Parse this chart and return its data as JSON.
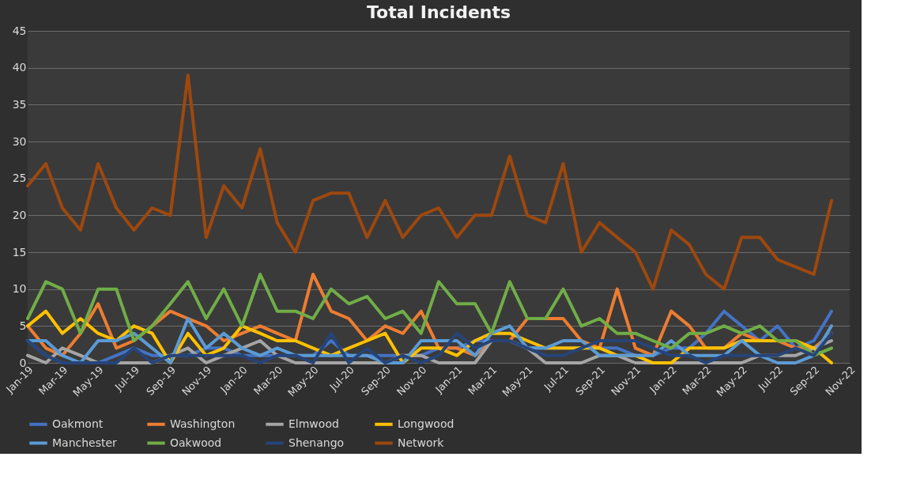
{
  "chart_data": {
    "type": "line",
    "title": "Total Incidents",
    "x": [
      "2019-01",
      "2019-02",
      "2019-03",
      "2019-04",
      "2019-05",
      "2019-06",
      "2019-07",
      "2019-08",
      "2019-09",
      "2019-10",
      "2019-11",
      "2019-12",
      "2020-01",
      "2020-02",
      "2020-03",
      "2020-04",
      "2020-05",
      "2020-06",
      "2020-07",
      "2020-08",
      "2020-09",
      "2020-10",
      "2020-11",
      "2020-12",
      "2021-01",
      "2021-02",
      "2021-03",
      "2021-04",
      "2021-05",
      "2021-06",
      "2021-07",
      "2021-08",
      "2021-09",
      "2021-10",
      "2021-11",
      "2021-12",
      "2022-01",
      "2022-02",
      "2022-03",
      "2022-04",
      "2022-05",
      "2022-06",
      "2022-07",
      "2022-08",
      "2022-09",
      "2022-10"
    ],
    "xlim": [
      "2019-01",
      "2022-11"
    ],
    "xticks": [
      {
        "value": "2019-01",
        "label": "Jan-19"
      },
      {
        "value": "2019-03",
        "label": "Mar-19"
      },
      {
        "value": "2019-05",
        "label": "May-19"
      },
      {
        "value": "2019-07",
        "label": "Jul-19"
      },
      {
        "value": "2019-09",
        "label": "Sep-19"
      },
      {
        "value": "2019-11",
        "label": "Nov-19"
      },
      {
        "value": "2020-01",
        "label": "Jan-20"
      },
      {
        "value": "2020-03",
        "label": "Mar-20"
      },
      {
        "value": "2020-05",
        "label": "May-20"
      },
      {
        "value": "2020-07",
        "label": "Jul-20"
      },
      {
        "value": "2020-09",
        "label": "Sep-20"
      },
      {
        "value": "2020-11",
        "label": "Nov-20"
      },
      {
        "value": "2021-01",
        "label": "Jan-21"
      },
      {
        "value": "2021-03",
        "label": "Mar-21"
      },
      {
        "value": "2021-05",
        "label": "May-21"
      },
      {
        "value": "2021-07",
        "label": "Jul-21"
      },
      {
        "value": "2021-09",
        "label": "Sep-21"
      },
      {
        "value": "2021-11",
        "label": "Nov-21"
      },
      {
        "value": "2022-01",
        "label": "Jan-22"
      },
      {
        "value": "2022-03",
        "label": "Mar-22"
      },
      {
        "value": "2022-05",
        "label": "May-22"
      },
      {
        "value": "2022-07",
        "label": "Jul-22"
      },
      {
        "value": "2022-09",
        "label": "Sep-22"
      },
      {
        "value": "2022-11",
        "label": "Nov-22"
      }
    ],
    "ylim": [
      0,
      45
    ],
    "yticks": [
      0,
      5,
      10,
      15,
      20,
      25,
      30,
      35,
      40,
      45
    ],
    "grid": "y",
    "legend": "bottom",
    "line_style": "solid",
    "series": [
      {
        "name": "Oakmont",
        "color": "#4472c4",
        "values": [
          3,
          1,
          0,
          0,
          0,
          1,
          2,
          1,
          1,
          1,
          2,
          2,
          1,
          1,
          1,
          1,
          1,
          3,
          1,
          1,
          1,
          1,
          1,
          2,
          2,
          3,
          3,
          3,
          2,
          2,
          2,
          2,
          2,
          2,
          1,
          1,
          2,
          2,
          4,
          7,
          5,
          3,
          5,
          2,
          3,
          7
        ]
      },
      {
        "name": "Washington",
        "color": "#ed7d31",
        "values": [
          5,
          2,
          1,
          4,
          8,
          2,
          3,
          5,
          7,
          6,
          5,
          3,
          4,
          5,
          4,
          3,
          12,
          7,
          6,
          3,
          5,
          4,
          7,
          2,
          2,
          1,
          3,
          3,
          6,
          6,
          6,
          3,
          2,
          10,
          2,
          1,
          7,
          5,
          2,
          2,
          4,
          3,
          3,
          2,
          2,
          4
        ]
      },
      {
        "name": "Elmwood",
        "color": "#a5a5a5",
        "values": [
          1,
          0,
          2,
          1,
          0,
          0,
          0,
          0,
          1,
          2,
          0,
          1,
          2,
          3,
          1,
          0,
          0,
          0,
          0,
          0,
          0,
          1,
          1,
          0,
          0,
          0,
          3,
          3,
          2,
          0,
          0,
          0,
          1,
          1,
          0,
          0,
          0,
          0,
          0,
          0,
          0,
          1,
          1,
          1,
          2,
          3
        ]
      },
      {
        "name": "Longwood",
        "color": "#ffc000",
        "values": [
          5,
          7,
          4,
          6,
          4,
          3,
          5,
          4,
          0,
          4,
          1,
          2,
          5,
          4,
          3,
          3,
          2,
          1,
          2,
          3,
          4,
          0,
          2,
          2,
          1,
          3,
          4,
          4,
          3,
          2,
          2,
          2,
          2,
          1,
          1,
          0,
          0,
          2,
          2,
          2,
          3,
          3,
          3,
          3,
          2,
          0
        ]
      },
      {
        "name": "Manchester",
        "color": "#5b9bd5",
        "values": [
          3,
          3,
          1,
          0,
          3,
          3,
          4,
          2,
          0,
          6,
          2,
          4,
          2,
          1,
          2,
          1,
          1,
          1,
          1,
          1,
          0,
          0,
          3,
          3,
          3,
          1,
          4,
          5,
          2,
          2,
          3,
          3,
          1,
          1,
          1,
          1,
          3,
          1,
          1,
          1,
          3,
          1,
          0,
          0,
          1,
          5
        ]
      },
      {
        "name": "Oakwood",
        "color": "#70ad47",
        "values": [
          6,
          11,
          10,
          4,
          10,
          10,
          3,
          5,
          8,
          11,
          6,
          10,
          5,
          12,
          7,
          7,
          6,
          10,
          8,
          9,
          6,
          7,
          4,
          11,
          8,
          8,
          4,
          11,
          6,
          6,
          10,
          5,
          6,
          4,
          4,
          3,
          2,
          4,
          4,
          5,
          4,
          5,
          3,
          3,
          1,
          2
        ]
      },
      {
        "name": "Shenango",
        "color": "#264478",
        "values": [
          3,
          1,
          0,
          0,
          0,
          0,
          2,
          0,
          1,
          1,
          1,
          1,
          1,
          0,
          1,
          1,
          0,
          4,
          0,
          2,
          0,
          1,
          0,
          1,
          4,
          2,
          3,
          3,
          2,
          1,
          1,
          2,
          3,
          3,
          3,
          2,
          1,
          1,
          0,
          1,
          1,
          1,
          1,
          2,
          1,
          4
        ]
      },
      {
        "name": "Network",
        "color": "#9e480e",
        "values": [
          24,
          27,
          21,
          18,
          27,
          21,
          18,
          21,
          20,
          39,
          17,
          24,
          21,
          29,
          19,
          15,
          22,
          23,
          23,
          17,
          22,
          17,
          20,
          21,
          17,
          20,
          20,
          28,
          20,
          19,
          27,
          15,
          19,
          17,
          15,
          10,
          18,
          16,
          12,
          10,
          17,
          17,
          14,
          13,
          12,
          22
        ]
      }
    ]
  }
}
